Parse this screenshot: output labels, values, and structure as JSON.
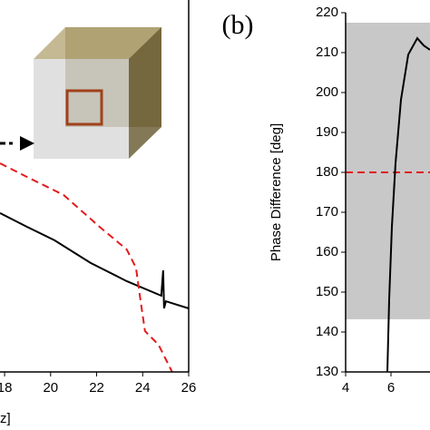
{
  "chart_data": [
    {
      "type": "line",
      "x_label": "z]",
      "x": [
        17.8,
        18.98,
        20.17,
        21.74,
        23.31,
        24.73,
        24.81,
        24.89,
        24.93,
        25.01,
        25.99
      ],
      "series": [
        {
          "color": "#000000",
          "dash": false,
          "values": [
            0.427,
            0.39,
            0.354,
            0.293,
            0.244,
            0.207,
            0.205,
            0.273,
            0.171,
            0.19,
            0.171
          ]
        }
      ],
      "series_b_x": [
        17.8,
        18.98,
        20.56,
        22.13,
        23.31,
        23.71,
        23.9,
        24.1,
        24.69,
        25.28
      ],
      "series_b": {
        "color": "#e41a1c",
        "dash": true,
        "values": [
          0.561,
          0.524,
          0.476,
          0.39,
          0.329,
          0.28,
          0.195,
          0.11,
          0.073,
          0.0
        ]
      },
      "xlim": [
        17.8,
        26
      ],
      "ylim": [
        0,
        1
      ],
      "xticks": [
        18,
        20,
        22,
        24,
        26
      ]
    },
    {
      "type": "line",
      "panel_label": "(b)",
      "y_label": "Phase Difference [deg]",
      "x": [
        5.84,
        5.92,
        6.04,
        6.2,
        6.44,
        6.76,
        7.16,
        7.44,
        7.72
      ],
      "series": [
        {
          "color": "#000000",
          "dash": false,
          "values": [
            130,
            148.2,
            166.4,
            182.3,
            198.2,
            209.5,
            213.6,
            211.8,
            210.7
          ]
        }
      ],
      "shade": {
        "color": "#c8c8c8",
        "range": [
          143.2,
          217.5
        ]
      },
      "hline": {
        "color": "#e41a1c",
        "value": 180
      },
      "xlim": [
        4,
        7.72
      ],
      "ylim": [
        130,
        220
      ],
      "xticks": [
        4,
        6
      ],
      "yticks": [
        130,
        140,
        150,
        160,
        170,
        180,
        190,
        200,
        210,
        220
      ]
    }
  ]
}
